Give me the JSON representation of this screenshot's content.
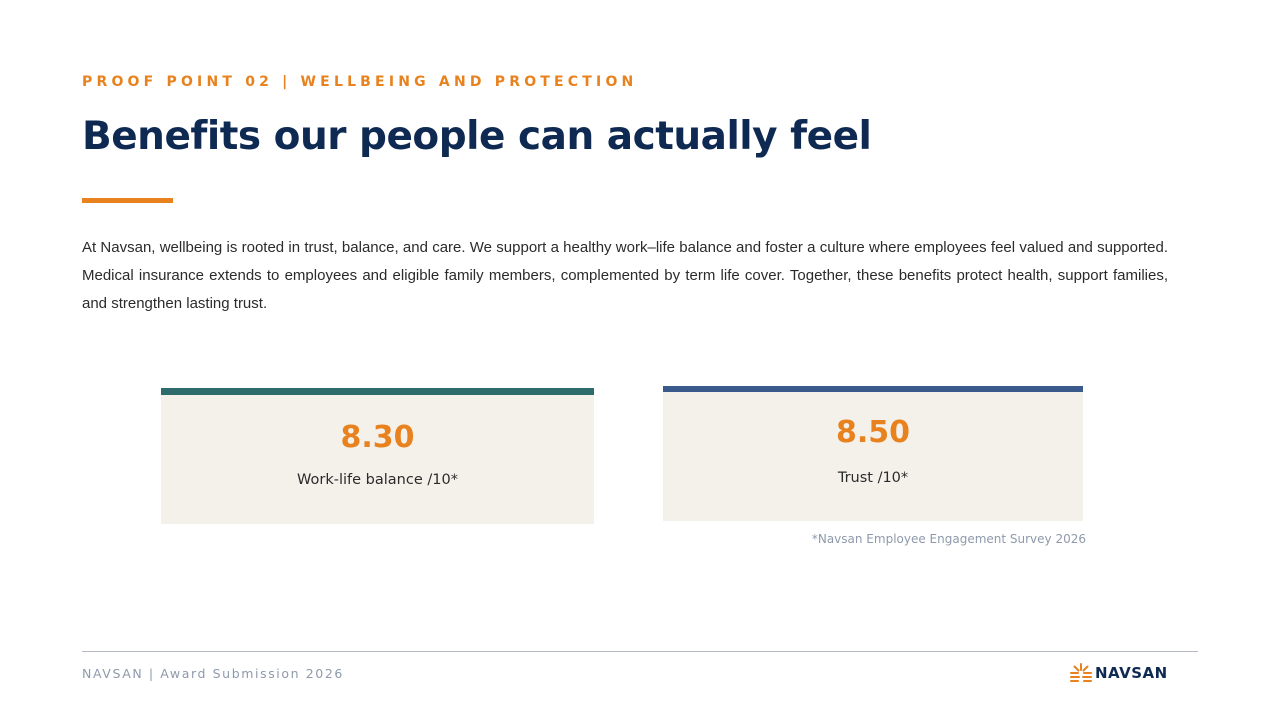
{
  "header": {
    "eyebrow": "PROOF POINT 02  |  WELLBEING AND PROTECTION",
    "title": "Benefits our people can actually feel"
  },
  "intro": "At Navsan, wellbeing is rooted in trust, balance, and care. We support a healthy work–life balance and foster a culture where employees feel valued and supported. Medical insurance extends to employees and eligible family members, complemented by term life cover. Together, these benefits protect health, support families, and strengthen lasting trust.",
  "metrics": [
    {
      "value": "8.30",
      "label": "Work-life balance /10*",
      "accent": "#2e6b6b"
    },
    {
      "value": "8.50",
      "label": "Trust /10*",
      "accent": "#3b5a8c"
    }
  ],
  "footnote": "*Navsan Employee Engagement Survey 2026",
  "footer": {
    "text": "NAVSAN  |  Award Submission 2026",
    "logo_text": "NAVSAN"
  },
  "colors": {
    "accent_orange": "#e8821e",
    "navy": "#0f2a52",
    "card_bg": "#f4f1eb"
  },
  "icons": {
    "logo_mark": "sunburst-logo-icon"
  }
}
